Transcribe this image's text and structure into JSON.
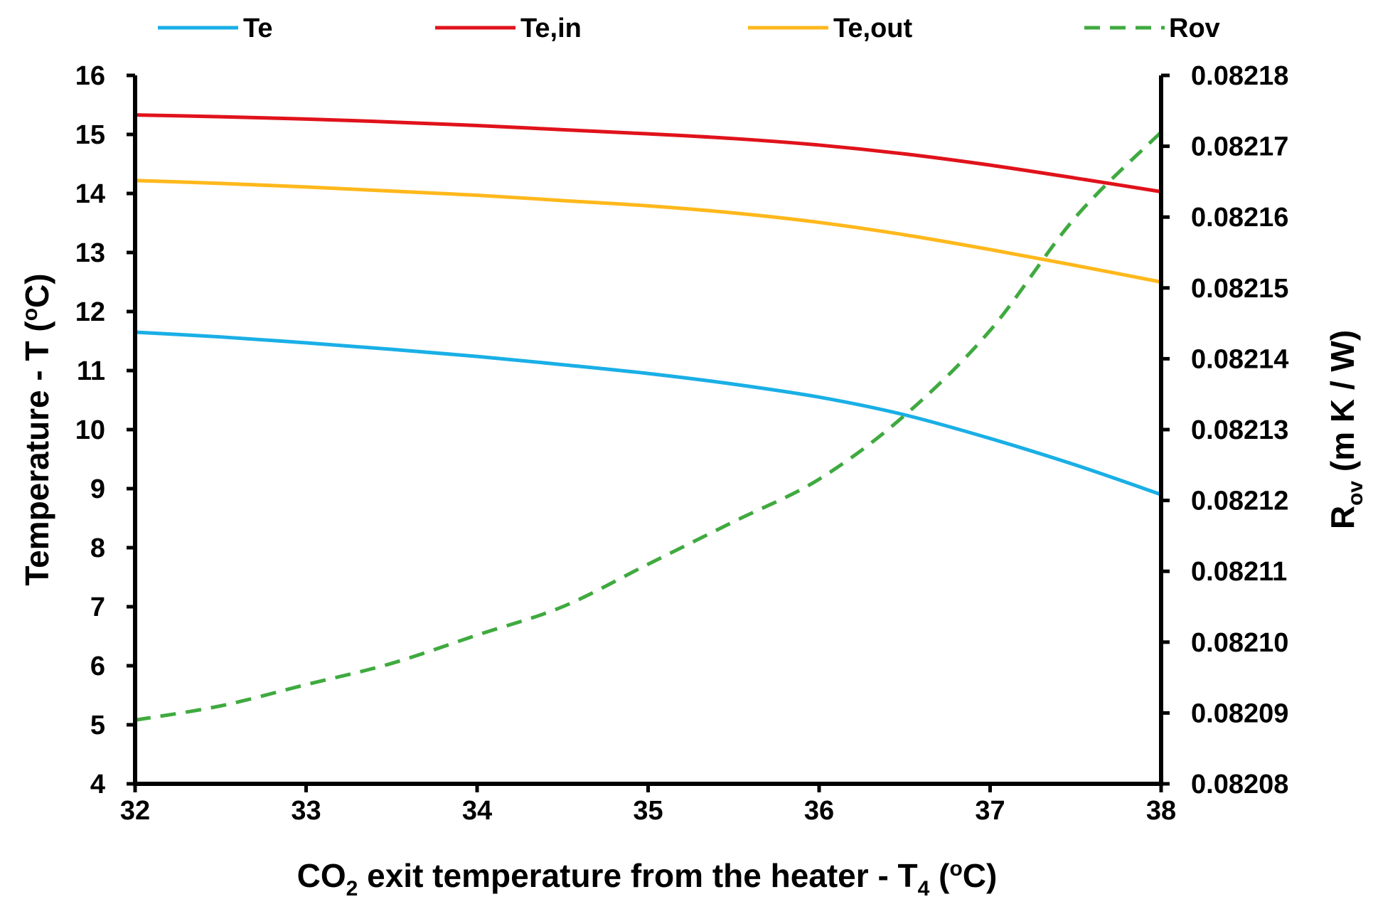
{
  "chart_data": {
    "type": "line",
    "title": "",
    "x": [
      32,
      32.5,
      33,
      33.5,
      34,
      34.5,
      35,
      35.5,
      36,
      36.5,
      37,
      37.5,
      38
    ],
    "xlabel": {
      "main": "CO",
      "sub1": "2",
      "mid": " exit temperature  from the heater - T",
      "sub2": "4",
      "pre_sup": " (",
      "sup": "o",
      "post_sup": "C)"
    },
    "ylabel_left": {
      "main": "Temperature - T (",
      "sup": "o",
      "post": "C)"
    },
    "ylabel_right": {
      "main": "R",
      "sub": "ov",
      "post": " (m K / W)"
    },
    "xlim": [
      32,
      38
    ],
    "ylim_left": [
      4,
      16
    ],
    "ylim_right": [
      0.08208,
      0.08218
    ],
    "x_ticks": [
      "32",
      "33",
      "34",
      "35",
      "36",
      "37",
      "38"
    ],
    "y_ticks_left": [
      "4",
      "5",
      "6",
      "7",
      "8",
      "9",
      "10",
      "11",
      "12",
      "13",
      "14",
      "15",
      "16"
    ],
    "y_ticks_right": [
      "0.08208",
      "0.08209",
      "0.08210",
      "0.08211",
      "0.08212",
      "0.08213",
      "0.08214",
      "0.08215",
      "0.08216",
      "0.08217",
      "0.08218"
    ],
    "legend_position": "top",
    "grid": false,
    "series": [
      {
        "name": "Te",
        "axis": "left",
        "color": "#1AAFE6",
        "dash": "solid",
        "values": [
          11.65,
          11.57,
          11.47,
          11.36,
          11.24,
          11.1,
          10.95,
          10.77,
          10.55,
          10.25,
          9.85,
          9.4,
          8.9
        ]
      },
      {
        "name": "Te,in",
        "axis": "left",
        "color": "#E0121B",
        "dash": "solid",
        "values": [
          15.33,
          15.3,
          15.26,
          15.21,
          15.15,
          15.08,
          15.01,
          14.93,
          14.82,
          14.67,
          14.48,
          14.26,
          14.03
        ]
      },
      {
        "name": "Te,out",
        "axis": "left",
        "color": "#FFB81C",
        "dash": "solid",
        "values": [
          14.22,
          14.17,
          14.11,
          14.04,
          13.97,
          13.88,
          13.79,
          13.67,
          13.51,
          13.3,
          13.05,
          12.78,
          12.5
        ]
      },
      {
        "name": "Rov",
        "axis": "right",
        "color": "#3FAA3F",
        "dash": "dashed",
        "values": [
          0.082089,
          0.082091,
          0.082094,
          0.082097,
          0.082101,
          0.082105,
          0.082111,
          0.082117,
          0.082123,
          0.082132,
          0.082144,
          0.08216,
          0.082172
        ]
      }
    ]
  }
}
